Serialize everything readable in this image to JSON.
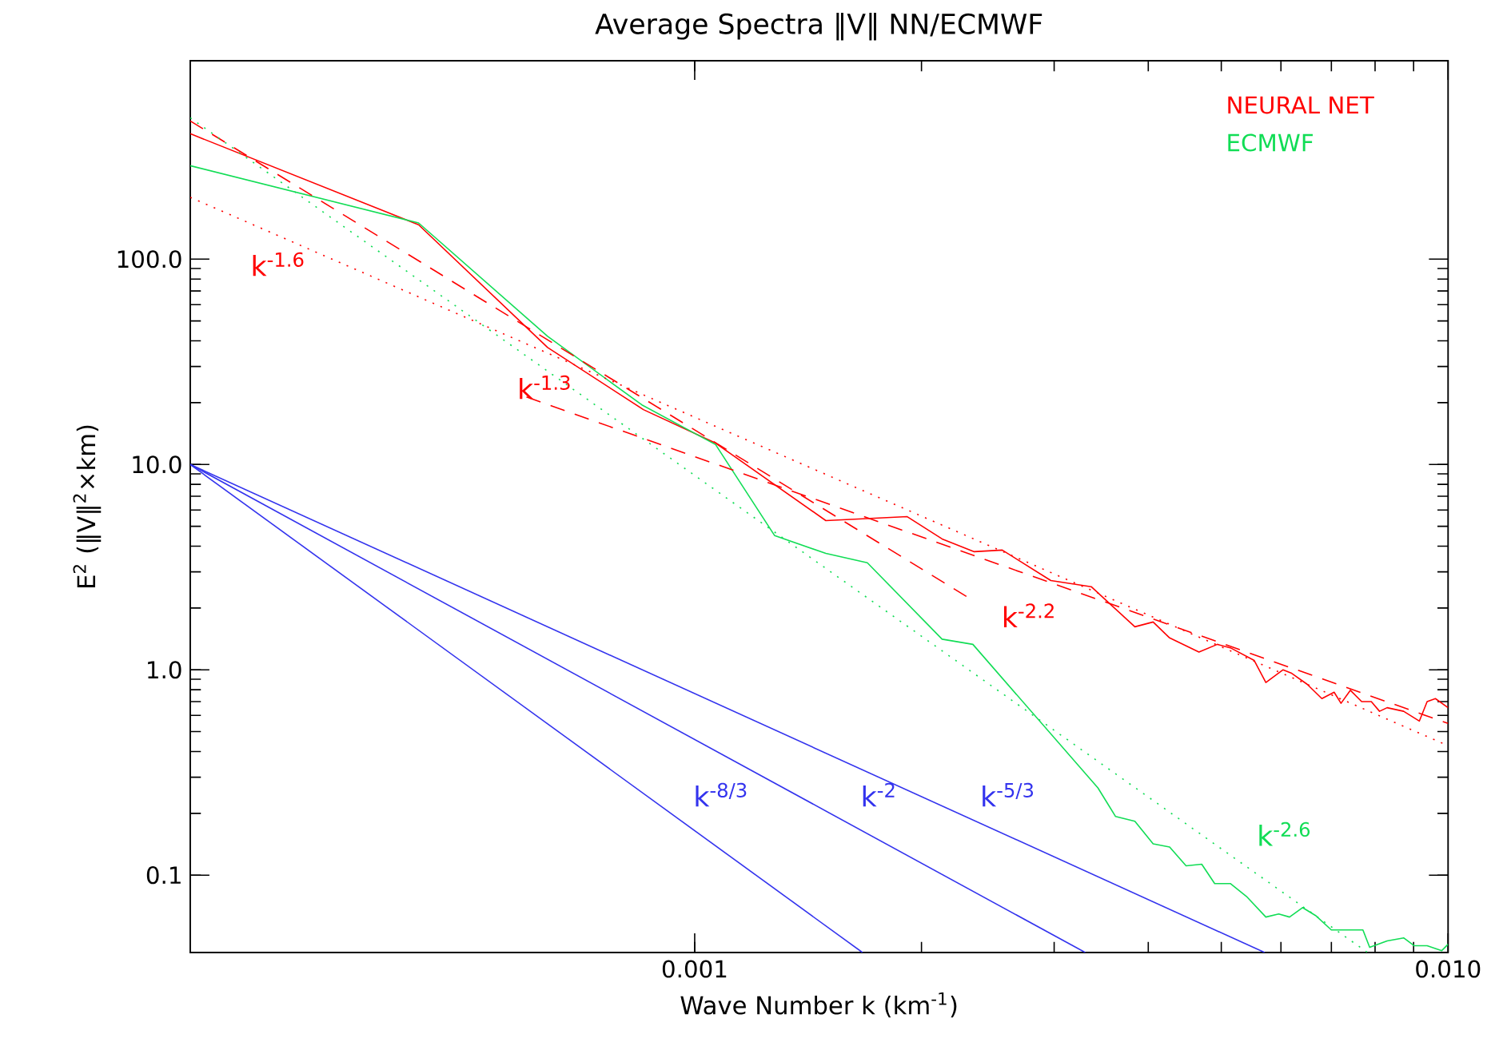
{
  "chart_data": {
    "type": "line",
    "title": "Average Spectra ‖V‖ NN/ECMWF",
    "xlabel": "Wave Number k (km$^{-1}$)",
    "ylabel": "E$^{2}$ (‖V‖$^{2}$×km)",
    "log": "xy",
    "legend": "top right",
    "xlim": [
      0.000214,
      0.01
    ],
    "ylim": [
      0.042,
      925
    ],
    "xticks": [
      0.001,
      {
        "value": 0.01,
        "label": "0.010"
      }
    ],
    "yticks": [
      {
        "value": 0.1,
        "label": "0.1"
      },
      {
        "value": 1,
        "label": "1.0"
      },
      {
        "value": 10,
        "label": "10.0"
      },
      {
        "value": 100,
        "label": "100.0"
      }
    ],
    "series": [
      {
        "name": "NEURAL NET",
        "color": "#ff0000",
        "line_style": "solid",
        "x": [
          0.000214,
          0.00043,
          0.000638,
          0.000855,
          0.001066,
          0.001493,
          0.001915,
          0.00213,
          0.00235,
          0.00256,
          0.00297,
          0.00336,
          0.00384,
          0.00406,
          0.00427,
          0.00467,
          0.00494,
          0.00514,
          0.00553,
          0.00573,
          0.00604,
          0.00619,
          0.0065,
          0.0068,
          0.00706,
          0.00721,
          0.00742,
          0.00768,
          0.00791,
          0.00811,
          0.0083,
          0.00873,
          0.00916,
          0.00938,
          0.00962,
          0.01
        ],
        "values": [
          408,
          147,
          37.1,
          18.5,
          12.7,
          5.33,
          5.57,
          4.34,
          3.76,
          3.83,
          2.72,
          2.54,
          1.62,
          1.71,
          1.43,
          1.22,
          1.33,
          1.28,
          1.11,
          0.867,
          1.0,
          0.965,
          0.851,
          0.724,
          0.778,
          0.687,
          0.795,
          0.7,
          0.7,
          0.628,
          0.654,
          0.628,
          0.563,
          0.7,
          0.724,
          0.654
        ]
      },
      {
        "name": "ECMWF",
        "color": "#11dd55",
        "line_style": "solid",
        "x": [
          0.000214,
          0.00043,
          0.000638,
          0.000851,
          0.001066,
          0.001277,
          0.001493,
          0.001695,
          0.00213,
          0.00234,
          0.00343,
          0.00362,
          0.00384,
          0.00406,
          0.00427,
          0.00449,
          0.00471,
          0.0049,
          0.00514,
          0.0054,
          0.00573,
          0.00596,
          0.00616,
          0.00641,
          0.00667,
          0.007,
          0.00735,
          0.00771,
          0.00787,
          0.0083,
          0.00873,
          0.00902,
          0.00938,
          0.00981,
          0.01
        ],
        "values": [
          285,
          150,
          42.1,
          19.5,
          12.5,
          4.5,
          3.69,
          3.32,
          1.41,
          1.33,
          0.266,
          0.193,
          0.183,
          0.142,
          0.137,
          0.111,
          0.113,
          0.091,
          0.091,
          0.0788,
          0.0625,
          0.0647,
          0.0625,
          0.0695,
          0.0636,
          0.0541,
          0.0541,
          0.0541,
          0.0445,
          0.0478,
          0.0495,
          0.0453,
          0.0453,
          0.0429,
          0.0461
        ]
      },
      {
        "color": "#ff0000",
        "line_style": "dotted",
        "x": [
          0.000214,
          0.01
        ],
        "values": [
          200,
          0.427
        ]
      },
      {
        "color": "#ff0000",
        "line_style": "dashed",
        "x": [
          0.000214,
          0.00233
        ],
        "values": [
          471,
          2.2
        ]
      },
      {
        "color": "#ff0000",
        "line_style": "dashed",
        "x": [
          0.000598,
          0.01
        ],
        "values": [
          21.3,
          0.548
        ]
      },
      {
        "color": "#11dd55",
        "line_style": "dotted",
        "x": [
          0.000214,
          0.00782
        ],
        "values": [
          488,
          0.042
        ]
      },
      {
        "color": "#3333ee",
        "line_style": "solid",
        "x": [
          0.000214,
          0.00571
        ],
        "values": [
          10,
          0.042
        ]
      },
      {
        "color": "#3333ee",
        "line_style": "solid",
        "x": [
          0.000214,
          0.0033
        ],
        "values": [
          10,
          0.042
        ]
      },
      {
        "color": "#3333ee",
        "line_style": "solid",
        "x": [
          0.000214,
          0.00167
        ],
        "values": [
          10,
          0.042
        ]
      }
    ],
    "annotations": [
      "k$^{-1.6}$",
      "k$^{-1.3}$",
      "k$^{-2.2}$",
      "k$^{-2.6}$",
      "k$^{-8/3}$",
      "k$^{-2}$",
      "k$^{-5/3}$"
    ]
  }
}
